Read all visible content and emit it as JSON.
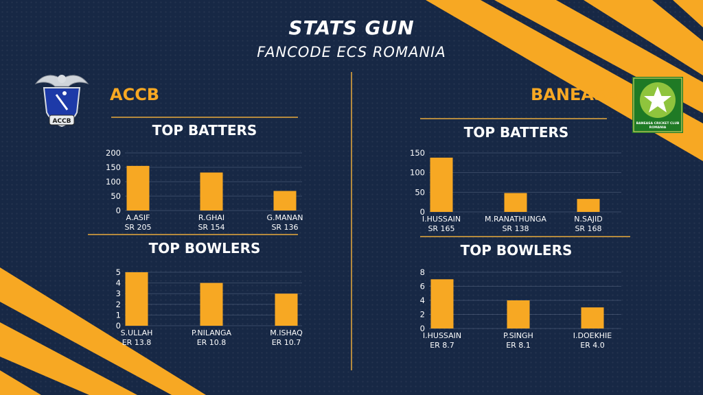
{
  "header": {
    "title": "STATS GUN",
    "subtitle": "FANCODE ECS ROMANIA"
  },
  "colors": {
    "background": "#172845",
    "accent": "#f7a823",
    "bar": "#f7a823",
    "divider": "#b58a3e",
    "text": "#ffffff"
  },
  "teams": [
    {
      "name": "ACCB",
      "logo_text": "ACCB",
      "batters_heading": "TOP BATTERS",
      "bowlers_heading": "TOP BOWLERS"
    },
    {
      "name": "BANEASA",
      "logo_text": "BANEASA CRICKET CLUB ROMANIA",
      "batters_heading": "TOP BATTERS",
      "bowlers_heading": "TOP BOWLERS"
    }
  ],
  "chart_data": [
    {
      "type": "bar",
      "title": "TOP BATTERS",
      "categories": [
        "A.ASIF",
        "R.GHAI",
        "G.MANAN"
      ],
      "sublabels": [
        "SR 205",
        "SR 154",
        "SR 136"
      ],
      "values": [
        155,
        132,
        68
      ],
      "ylim": [
        0,
        200
      ],
      "yticks": [
        0,
        50,
        100,
        150,
        200
      ],
      "grid": true
    },
    {
      "type": "bar",
      "title": "TOP BOWLERS",
      "categories": [
        "S.ULLAH",
        "P.NILANGA",
        "M.ISHAQ"
      ],
      "sublabels": [
        "ER 13.8",
        "ER 10.8",
        "ER 10.7"
      ],
      "values": [
        5,
        4,
        3
      ],
      "ylim": [
        0,
        5
      ],
      "yticks": [
        0,
        1,
        2,
        3,
        4,
        5
      ],
      "grid": true
    },
    {
      "type": "bar",
      "title": "TOP BATTERS",
      "categories": [
        "I.HUSSAIN",
        "M.RANATHUNGA",
        "N.SAJID"
      ],
      "sublabels": [
        "SR 165",
        "SR 138",
        "SR 168"
      ],
      "values": [
        138,
        48,
        33
      ],
      "ylim": [
        0,
        150
      ],
      "yticks": [
        0,
        50,
        100,
        150
      ],
      "grid": true
    },
    {
      "type": "bar",
      "title": "TOP BOWLERS",
      "categories": [
        "I.HUSSAIN",
        "P.SINGH",
        "I.DOEKHIE"
      ],
      "sublabels": [
        "ER 8.7",
        "ER 8.1",
        "ER 4.0"
      ],
      "values": [
        7,
        4,
        3
      ],
      "ylim": [
        0,
        8
      ],
      "yticks": [
        0,
        2,
        4,
        6,
        8
      ],
      "grid": true
    }
  ]
}
